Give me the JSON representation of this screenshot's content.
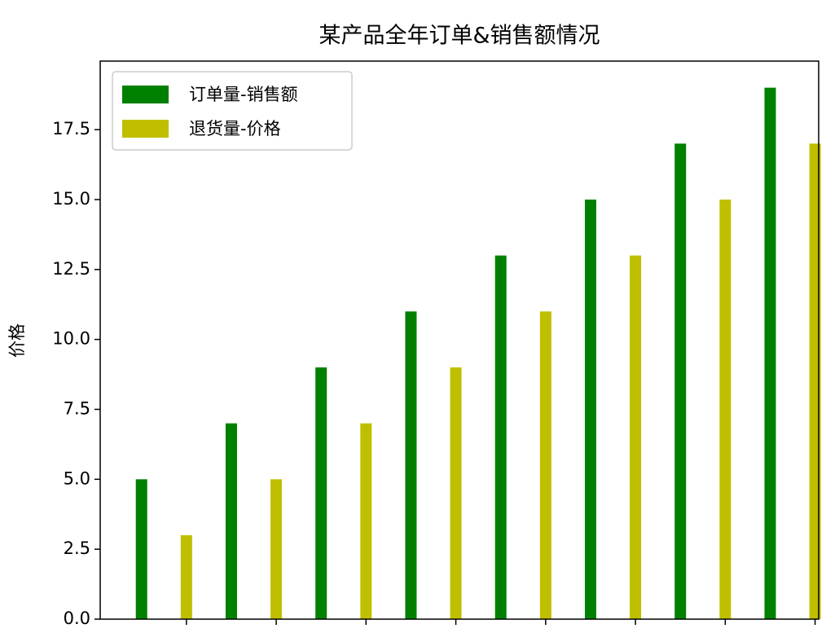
{
  "chart_data": {
    "type": "bar",
    "title": "某产品全年订单&销售额情况",
    "y_label": "价格",
    "categories": [
      null,
      null,
      null,
      null,
      null,
      null,
      null,
      null
    ],
    "series": [
      {
        "name": "订单量-销售额",
        "color": "#008000",
        "values": [
          5,
          7,
          9,
          11,
          13,
          15,
          17,
          19
        ]
      },
      {
        "name": "退货量-价格",
        "color": "#bfbf00",
        "values": [
          3,
          5,
          7,
          9,
          11,
          13,
          15,
          17
        ]
      }
    ],
    "ylim": [
      0,
      19.95
    ],
    "yticks": [
      {
        "value": 0,
        "label": "0.0"
      },
      {
        "value": 2.5,
        "label": "2.5"
      },
      {
        "value": 5,
        "label": "5.0"
      },
      {
        "value": 7.5,
        "label": "7.5"
      },
      {
        "value": 10,
        "label": "10.0"
      },
      {
        "value": 12.5,
        "label": "12.5"
      },
      {
        "value": 15,
        "label": "15.0"
      },
      {
        "value": 17.5,
        "label": "17.5"
      }
    ],
    "legend": "upper left",
    "grid": false
  }
}
